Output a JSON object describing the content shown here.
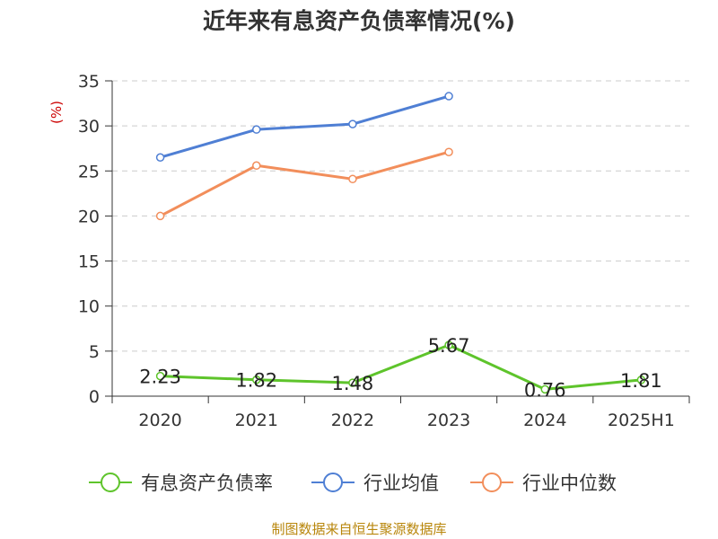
{
  "chart_data": {
    "type": "line",
    "title": "近年来有息资产负债率情况(%)",
    "ylabel": "(%)",
    "ylim": [
      0,
      35
    ],
    "yticks": [
      0,
      5,
      10,
      15,
      20,
      25,
      30,
      35
    ],
    "categories": [
      "2020",
      "2021",
      "2022",
      "2023",
      "2024",
      "2025H1"
    ],
    "grid": true,
    "legend_position": "bottom",
    "series": [
      {
        "name": "有息资产负债率",
        "color": "#5ec42b",
        "values": [
          2.23,
          1.82,
          1.48,
          5.67,
          0.76,
          1.81
        ],
        "labels": [
          "2.23",
          "1.82",
          "1.48",
          "5.67",
          "0.76",
          "1.81"
        ]
      },
      {
        "name": "行业均值",
        "color": "#4f7fd4",
        "values": [
          26.5,
          29.6,
          30.2,
          33.3,
          null,
          null
        ]
      },
      {
        "name": "行业中位数",
        "color": "#f28e5b",
        "values": [
          20.0,
          25.6,
          24.1,
          27.1,
          null,
          null
        ]
      }
    ]
  },
  "source": "制图数据来自恒生聚源数据库"
}
